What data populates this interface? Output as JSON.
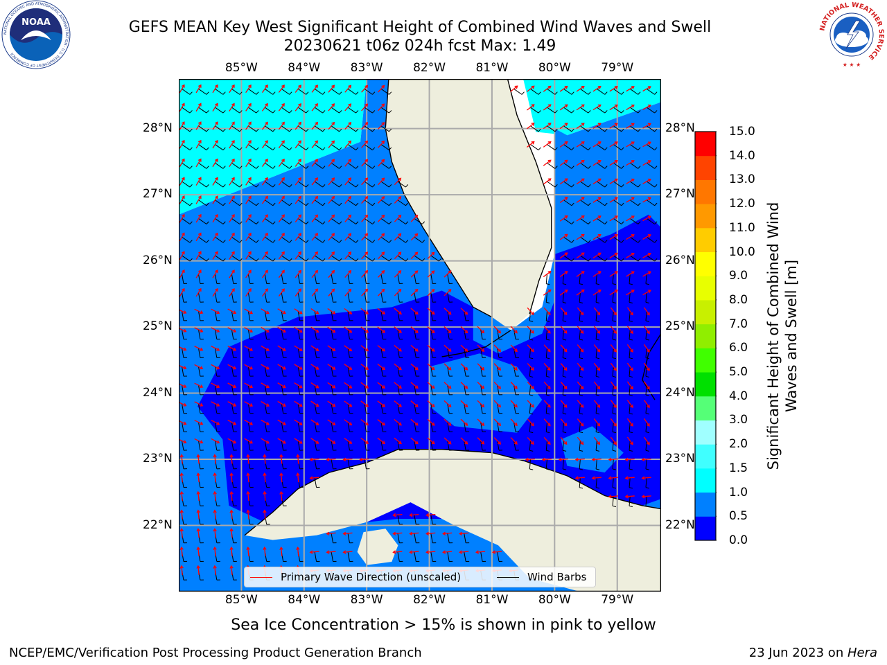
{
  "header": {
    "title_line1": "GEFS MEAN Key West Significant Height of Combined Wind Waves and Swell",
    "title_line2": "20230621 t06z 024h fcst   Max: 1.49",
    "noaa_logo_text": "NOAA",
    "noaa_ring_text": "NATIONAL OCEANIC AND ATMOSPHERIC ADMINISTRATION · U.S. DEPARTMENT OF COMMERCE",
    "nws_ring_text": "NATIONAL WEATHER SERVICE"
  },
  "map": {
    "projection": "plate-carree",
    "extent": {
      "lon_min": -86.0,
      "lon_max": -78.3,
      "lat_min": 21.0,
      "lat_max": 28.75
    },
    "lon_ticks": [
      {
        "value": -85,
        "label": "85°W"
      },
      {
        "value": -84,
        "label": "84°W"
      },
      {
        "value": -83,
        "label": "83°W"
      },
      {
        "value": -82,
        "label": "82°W"
      },
      {
        "value": -81,
        "label": "81°W"
      },
      {
        "value": -80,
        "label": "80°W"
      },
      {
        "value": -79,
        "label": "79°W"
      }
    ],
    "lat_ticks": [
      {
        "value": 28,
        "label": "28°N"
      },
      {
        "value": 27,
        "label": "27°N"
      },
      {
        "value": 26,
        "label": "26°N"
      },
      {
        "value": 25,
        "label": "25°N"
      },
      {
        "value": 24,
        "label": "24°N"
      },
      {
        "value": 23,
        "label": "23°N"
      },
      {
        "value": 22,
        "label": "22°N"
      }
    ],
    "colors": {
      "land": "#eeeedd",
      "gridline": "#aaaaaa",
      "wave_arrow": "#ff0000",
      "wind_barb": "#000000"
    },
    "field_regions": [
      {
        "level": "1.0–1.5 m",
        "color": "#00ffff",
        "polygon": [
          [
            -86,
            28.75
          ],
          [
            -83,
            28.75
          ],
          [
            -83.1,
            27.8
          ],
          [
            -86,
            26.7
          ]
        ]
      },
      {
        "level": "1.0–1.5 m",
        "color": "#00ffff",
        "polygon": [
          [
            -80.5,
            28.75
          ],
          [
            -78.3,
            28.75
          ],
          [
            -78.3,
            28.4
          ],
          [
            -79.8,
            27.9
          ],
          [
            -80.3,
            27.95
          ]
        ]
      },
      {
        "level": "1.0–1.5 m",
        "color": "#00ffff",
        "polygon": [
          [
            -86,
            22.6
          ],
          [
            -84.9,
            21.8
          ],
          [
            -84.0,
            21.35
          ],
          [
            -83.3,
            21.0
          ],
          [
            -86,
            21.0
          ]
        ]
      },
      {
        "level": "0.5–1.0 m",
        "color": "#0080ff",
        "polygon": [
          [
            -86,
            26.7
          ],
          [
            -83.1,
            27.8
          ],
          [
            -83,
            28.75
          ],
          [
            -82.3,
            28.75
          ],
          [
            -81.9,
            27.0
          ],
          [
            -81.6,
            26.3
          ],
          [
            -80.9,
            25.3
          ],
          [
            -80.7,
            24.95
          ],
          [
            -80.2,
            25.3
          ],
          [
            -80.0,
            26.1
          ],
          [
            -80.0,
            28.0
          ],
          [
            -79.8,
            27.9
          ],
          [
            -78.3,
            28.4
          ],
          [
            -78.3,
            21.0
          ],
          [
            -86,
            21.0
          ]
        ]
      },
      {
        "level": "0.0–0.5 m",
        "color": "#0000ff",
        "polygon": [
          [
            -85.7,
            23.8
          ],
          [
            -85.2,
            24.7
          ],
          [
            -84.1,
            25.15
          ],
          [
            -82.6,
            25.3
          ],
          [
            -81.8,
            25.55
          ],
          [
            -81.3,
            25.3
          ],
          [
            -81.3,
            24.8
          ],
          [
            -80.9,
            24.6
          ],
          [
            -80.2,
            24.9
          ],
          [
            -80.0,
            25.4
          ],
          [
            -80.0,
            26.1
          ],
          [
            -79.1,
            26.4
          ],
          [
            -78.5,
            26.7
          ],
          [
            -78.3,
            26.5
          ],
          [
            -78.3,
            22.4
          ],
          [
            -79.5,
            22.0
          ],
          [
            -80.5,
            21.9
          ],
          [
            -81.5,
            22.1
          ],
          [
            -82.5,
            22.1
          ],
          [
            -83.5,
            22.0
          ],
          [
            -84.3,
            21.9
          ],
          [
            -85.2,
            22.3
          ],
          [
            -85.3,
            23.3
          ]
        ]
      },
      {
        "level": "0.5–1.0 m",
        "color": "#0080ff",
        "polygon": [
          [
            -82.0,
            24.4
          ],
          [
            -81.2,
            24.6
          ],
          [
            -80.6,
            24.4
          ],
          [
            -80.2,
            23.9
          ],
          [
            -80.6,
            23.4
          ],
          [
            -81.6,
            23.5
          ],
          [
            -82.0,
            23.8
          ]
        ]
      },
      {
        "level": "0.5–1.0 m",
        "color": "#0080ff",
        "polygon": [
          [
            -79.9,
            23.3
          ],
          [
            -79.4,
            23.5
          ],
          [
            -78.9,
            23.1
          ],
          [
            -79.2,
            22.8
          ],
          [
            -79.8,
            22.9
          ]
        ]
      }
    ],
    "land_polygons": [
      {
        "name": "Florida",
        "polygon": [
          [
            -82.65,
            28.75
          ],
          [
            -82.7,
            28.0
          ],
          [
            -82.6,
            27.5
          ],
          [
            -82.4,
            27.0
          ],
          [
            -82.1,
            26.5
          ],
          [
            -81.7,
            25.9
          ],
          [
            -81.3,
            25.3
          ],
          [
            -81.0,
            25.15
          ],
          [
            -80.7,
            24.95
          ],
          [
            -80.4,
            25.2
          ],
          [
            -80.25,
            25.7
          ],
          [
            -80.05,
            26.2
          ],
          [
            -80.05,
            26.8
          ],
          [
            -80.3,
            27.5
          ],
          [
            -80.6,
            28.2
          ],
          [
            -80.75,
            28.75
          ]
        ]
      },
      {
        "name": "Cuba",
        "polygon": [
          [
            -84.95,
            21.85
          ],
          [
            -84.5,
            22.2
          ],
          [
            -84.1,
            22.55
          ],
          [
            -83.6,
            22.8
          ],
          [
            -83.0,
            22.95
          ],
          [
            -82.5,
            23.15
          ],
          [
            -81.8,
            23.15
          ],
          [
            -81.0,
            23.1
          ],
          [
            -80.5,
            22.98
          ],
          [
            -79.8,
            22.75
          ],
          [
            -79.2,
            22.45
          ],
          [
            -78.6,
            22.3
          ],
          [
            -78.3,
            22.25
          ],
          [
            -78.3,
            21.0
          ],
          [
            -79.6,
            21.0
          ],
          [
            -80.4,
            21.2
          ],
          [
            -80.9,
            21.7
          ],
          [
            -81.6,
            22.0
          ],
          [
            -82.3,
            22.35
          ],
          [
            -83.0,
            22.05
          ],
          [
            -83.8,
            21.85
          ],
          [
            -84.5,
            21.78
          ]
        ]
      },
      {
        "name": "Isla de la Juventud",
        "polygon": [
          [
            -83.05,
            21.9
          ],
          [
            -82.7,
            21.95
          ],
          [
            -82.5,
            21.7
          ],
          [
            -82.6,
            21.45
          ],
          [
            -83.0,
            21.4
          ],
          [
            -83.15,
            21.6
          ]
        ]
      }
    ],
    "coast_paths": [
      {
        "name": "florida-west-coast",
        "polygon": [
          [
            -82.65,
            28.75
          ],
          [
            -82.7,
            28.0
          ],
          [
            -82.6,
            27.5
          ],
          [
            -82.4,
            27.0
          ],
          [
            -82.1,
            26.5
          ],
          [
            -81.7,
            25.9
          ],
          [
            -81.3,
            25.3
          ],
          [
            -81.0,
            25.15
          ]
        ]
      },
      {
        "name": "florida-east-coast",
        "polygon": [
          [
            -80.4,
            25.2
          ],
          [
            -80.25,
            25.7
          ],
          [
            -80.05,
            26.2
          ],
          [
            -80.05,
            26.8
          ],
          [
            -80.3,
            27.5
          ],
          [
            -80.6,
            28.2
          ],
          [
            -80.75,
            28.75
          ]
        ]
      },
      {
        "name": "florida-keys",
        "polygon": [
          [
            -80.7,
            24.95
          ],
          [
            -81.1,
            24.7
          ],
          [
            -81.5,
            24.6
          ],
          [
            -81.8,
            24.55
          ]
        ]
      },
      {
        "name": "cuba-north-coast",
        "polygon": [
          [
            -84.95,
            21.85
          ],
          [
            -84.5,
            22.2
          ],
          [
            -84.1,
            22.55
          ],
          [
            -83.6,
            22.8
          ],
          [
            -83.0,
            22.95
          ],
          [
            -82.5,
            23.15
          ],
          [
            -81.8,
            23.15
          ],
          [
            -81.0,
            23.1
          ],
          [
            -80.5,
            22.98
          ],
          [
            -79.8,
            22.75
          ],
          [
            -79.2,
            22.45
          ],
          [
            -78.6,
            22.3
          ],
          [
            -78.3,
            22.25
          ]
        ]
      },
      {
        "name": "bahamas-andros",
        "polygon": [
          [
            -78.3,
            24.9
          ],
          [
            -78.5,
            24.6
          ],
          [
            -78.6,
            24.2
          ],
          [
            -78.4,
            23.9
          ]
        ]
      }
    ],
    "vector_field": {
      "lon_start": -85.95,
      "lon_step": 0.265,
      "lon_count": 29,
      "lat_start": 28.6,
      "lat_step": 0.28,
      "lat_count": 27
    }
  },
  "legend": {
    "items": [
      {
        "label": "Primary Wave Direction (unscaled)",
        "color": "#ff0000"
      },
      {
        "label": "Wind Barbs",
        "color": "#000000"
      }
    ]
  },
  "colorbar": {
    "label": "Significant Height of Combined Wind Waves and Swell [m]",
    "min": 0.0,
    "max": 15.0,
    "ticks": [
      "0.0",
      "0.5",
      "1.0",
      "1.5",
      "2.0",
      "3.0",
      "4.0",
      "5.0",
      "6.0",
      "7.0",
      "8.0",
      "9.0",
      "10.0",
      "11.0",
      "12.0",
      "13.0",
      "14.0",
      "15.0"
    ],
    "colors": [
      "#0000ff",
      "#0080ff",
      "#00ffff",
      "#40ffff",
      "#a0ffff",
      "#55ff77",
      "#00e000",
      "#40ff00",
      "#90ee00",
      "#c8f000",
      "#e8ff00",
      "#ffff00",
      "#ffcc00",
      "#ff9900",
      "#ff7700",
      "#ff4400",
      "#ff0000"
    ]
  },
  "footer": {
    "note": "Sea Ice Concentration > 15% is shown in pink to yellow",
    "credit_left": "NCEP/EMC/Verification Post Processing Product Generation Branch",
    "credit_date": "23 Jun 2023 on ",
    "credit_host": "Hera"
  }
}
